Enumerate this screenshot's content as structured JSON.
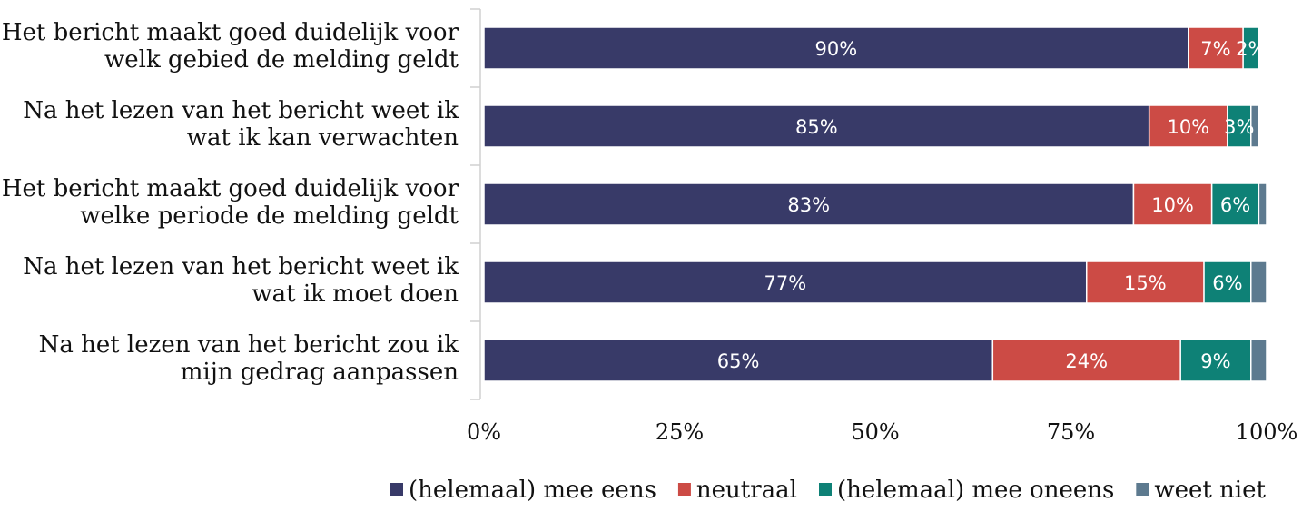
{
  "chart_data": {
    "type": "bar",
    "orientation": "horizontal",
    "stacked": true,
    "categories": [
      [
        "Het bericht maakt goed duidelijk voor",
        "welk gebied de melding geldt"
      ],
      [
        "Na het lezen van het bericht weet ik",
        "wat ik kan verwachten"
      ],
      [
        "Het bericht maakt goed duidelijk voor",
        "welke periode de melding geldt"
      ],
      [
        "Na het lezen van het bericht weet ik",
        "wat ik moet doen"
      ],
      [
        "Na het lezen van het bericht zou ik",
        "mijn gedrag aanpassen"
      ]
    ],
    "series": [
      {
        "name": "(helemaal) mee eens",
        "color": "#383a68",
        "values": [
          90,
          85,
          83,
          77,
          65
        ],
        "labels": [
          "90%",
          "85%",
          "83%",
          "77%",
          "65%"
        ]
      },
      {
        "name": "neutraal",
        "color": "#cc4b45",
        "values": [
          7,
          10,
          10,
          15,
          24
        ],
        "labels": [
          "7%",
          "10%",
          "10%",
          "15%",
          "24%"
        ]
      },
      {
        "name": "(helemaal) mee oneens",
        "color": "#0e8176",
        "values": [
          2,
          3,
          6,
          6,
          9
        ],
        "labels": [
          "2%",
          "3%",
          "6%",
          "6%",
          "9%"
        ]
      },
      {
        "name": "weet niet",
        "color": "#5d7a8f",
        "values": [
          0,
          1,
          1,
          2,
          2
        ],
        "labels": [
          "",
          "",
          "",
          "",
          ""
        ]
      }
    ],
    "xlim": [
      0,
      100
    ],
    "xticks": [
      "0%",
      "25%",
      "50%",
      "75%",
      "100%"
    ],
    "grid": false,
    "legend": "bottom"
  }
}
